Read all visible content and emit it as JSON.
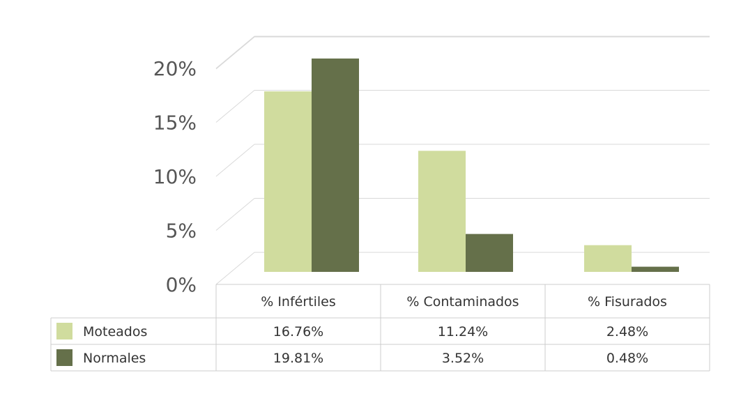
{
  "colors": {
    "series0": "#d0dc9e",
    "series1": "#65704a",
    "grid": "#d9d9d9",
    "table_border": "#cccccc"
  },
  "chart_data": {
    "type": "bar",
    "title": "",
    "xlabel": "",
    "ylabel": "",
    "categories": [
      "% Infértiles",
      "% Contaminados",
      "% Fisurados"
    ],
    "series": [
      {
        "name": "Moteados",
        "values": [
          16.76,
          11.24,
          2.48
        ],
        "labels": [
          "16.76%",
          "11.24%",
          "2.48%"
        ]
      },
      {
        "name": "Normales",
        "values": [
          19.81,
          3.52,
          0.48
        ],
        "labels": [
          "19.81%",
          "3.52%",
          "0.48%"
        ]
      }
    ],
    "yticks": [
      0,
      5,
      10,
      15,
      20
    ],
    "ytick_labels": [
      "0%",
      "5%",
      "10%",
      "15%",
      "20%"
    ],
    "ylim": [
      0,
      22
    ],
    "grid": true,
    "legend": "data-table-below"
  }
}
